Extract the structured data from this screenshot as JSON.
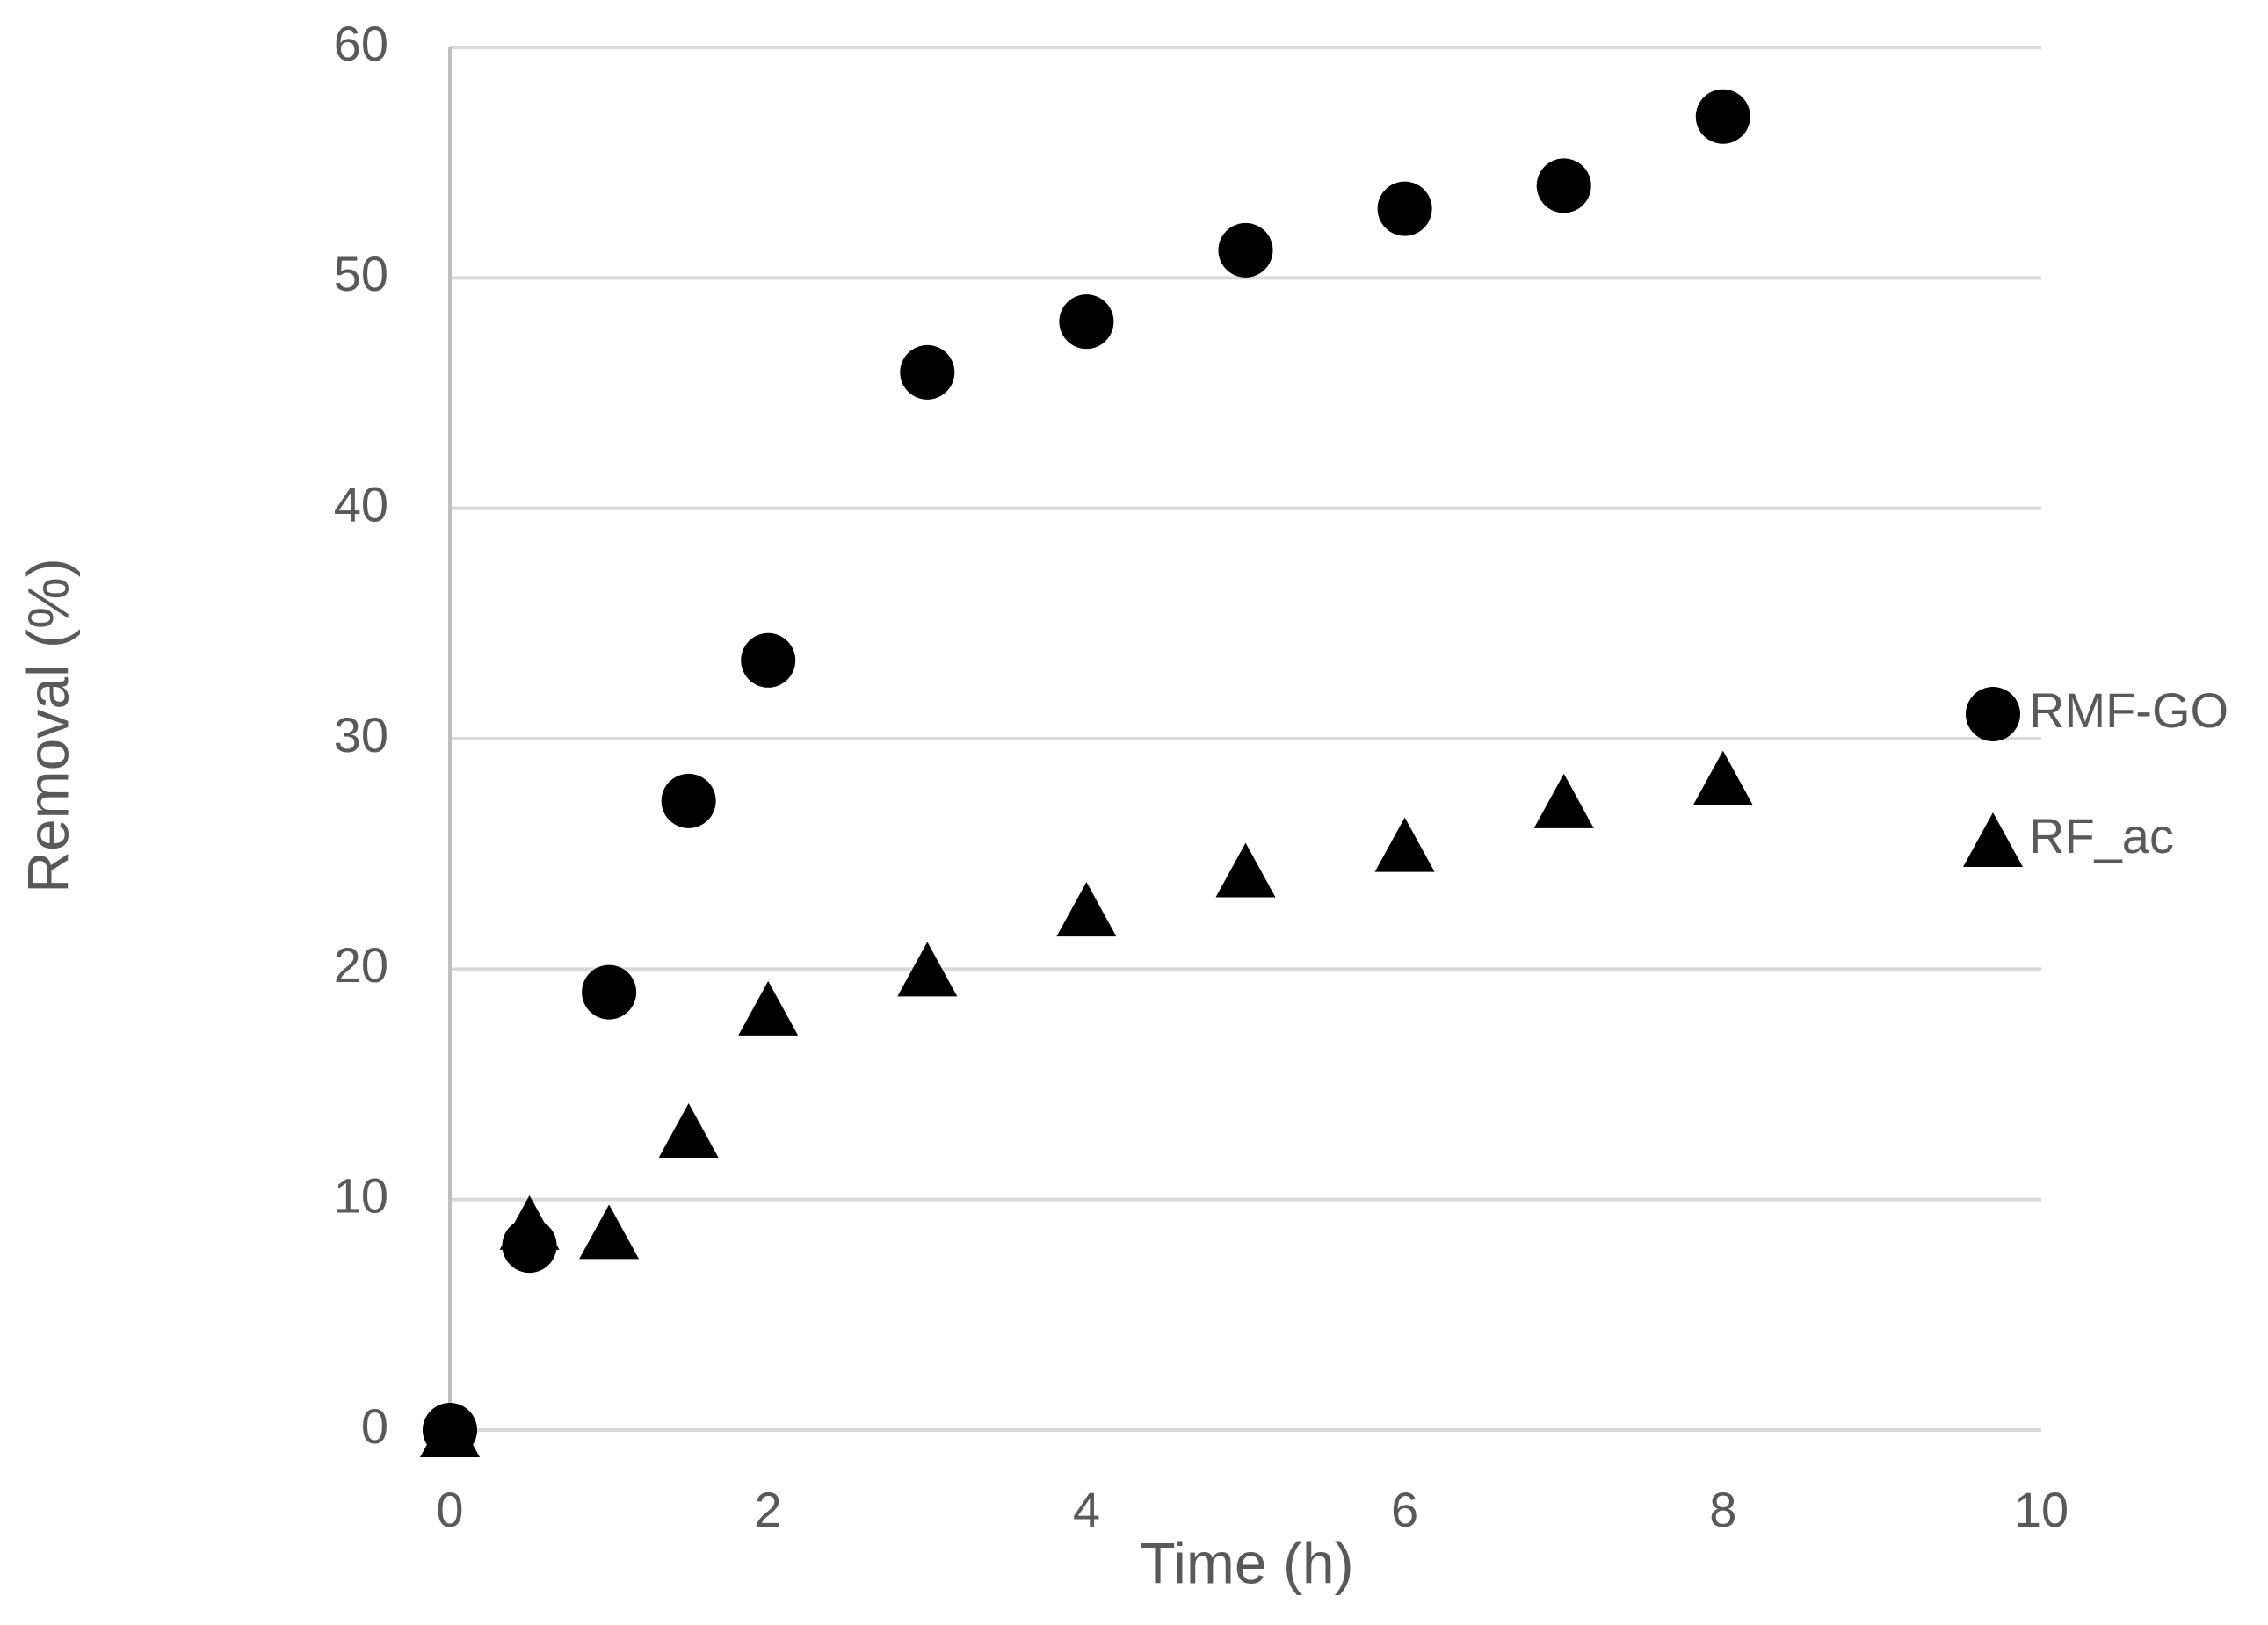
{
  "chart_data": {
    "type": "scatter",
    "x_label": "Time (h)",
    "y_label": "Removal  (%)",
    "x": [
      0,
      0.5,
      1,
      1.5,
      2,
      3,
      4,
      5,
      6,
      7,
      8
    ],
    "series": [
      {
        "name": "RMF-GO",
        "color": "#000000",
        "marker": "circle",
        "values": [
          0,
          8,
          19,
          27.3,
          33.4,
          45.9,
          48.1,
          51.2,
          53,
          54,
          57
        ]
      },
      {
        "name": "RF_ac",
        "color": "#000000",
        "marker": "triangle",
        "values": [
          0,
          9,
          8.6,
          13,
          18.3,
          20,
          22.6,
          24.3,
          25.4,
          27.3,
          28.3
        ]
      }
    ],
    "xlim": [
      0,
      10
    ],
    "xticks": [
      0,
      2,
      4,
      6,
      8,
      10
    ],
    "ylim": [
      0,
      60
    ],
    "yticks": [
      0,
      10,
      20,
      30,
      40,
      50,
      60
    ],
    "grid": true,
    "legend": "right"
  }
}
